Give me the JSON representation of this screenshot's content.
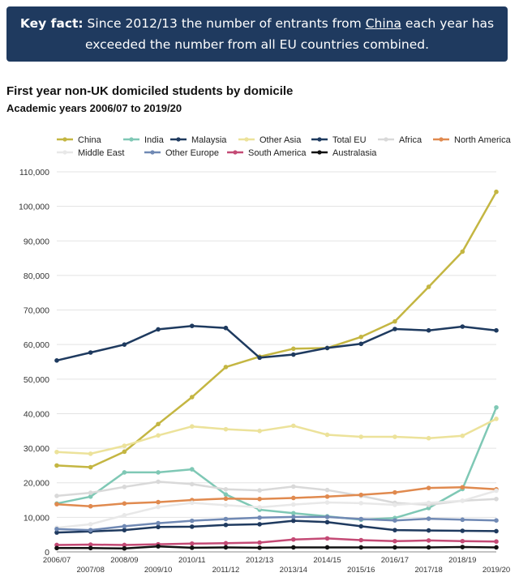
{
  "banner": {
    "label": "Key fact:",
    "text_1": "Since 2012/13 the number of entrants from",
    "link": "China",
    "text_2": "each year has exceeded the number from all EU countries combined."
  },
  "colors": {
    "banner_bg": "#1f3a5f"
  },
  "chart_data": {
    "type": "line",
    "title": "First year non-UK domiciled students by domicile",
    "subtitle": "Academic years 2006/07 to 2019/20",
    "legend_position": "top",
    "grid": true,
    "ylim": [
      0,
      110000
    ],
    "yticks": [
      "0",
      "10,000",
      "20,000",
      "30,000",
      "40,000",
      "50,000",
      "60,000",
      "70,000",
      "80,000",
      "90,000",
      "100,000",
      "110,000"
    ],
    "categories": [
      "2006/07",
      "2007/08",
      "2008/09",
      "2009/10",
      "2010/11",
      "2011/12",
      "2012/13",
      "2013/14",
      "2014/15",
      "2015/16",
      "2016/17",
      "2017/18",
      "2018/19",
      "2019/20"
    ],
    "series": [
      {
        "name": "China",
        "color": "#c4b642",
        "values": [
          25000,
          24500,
          29000,
          37000,
          44800,
          53500,
          56500,
          58800,
          59000,
          62200,
          66700,
          76700,
          86900,
          104200
        ]
      },
      {
        "name": "India",
        "color": "#7fc8b5",
        "values": [
          14000,
          16000,
          23000,
          23000,
          23900,
          16600,
          12200,
          11200,
          10300,
          9300,
          9800,
          12700,
          18200,
          41800
        ]
      },
      {
        "name": "Malaysia",
        "color": "#1f3a5f",
        "values": [
          5600,
          5900,
          6300,
          7200,
          7300,
          7800,
          8000,
          9000,
          8600,
          7400,
          6300,
          6200,
          6100,
          6000
        ]
      },
      {
        "name": "Other Asia",
        "color": "#ece29a",
        "values": [
          28900,
          28400,
          30700,
          33700,
          36300,
          35500,
          35000,
          36500,
          33900,
          33300,
          33300,
          32900,
          33600,
          38500
        ]
      },
      {
        "name": "Total EU",
        "color": "#1e3a5f",
        "values": [
          55400,
          57700,
          60000,
          64400,
          65400,
          64800,
          56200,
          57100,
          59000,
          60200,
          64500,
          64100,
          65200,
          64100
        ]
      },
      {
        "name": "Africa",
        "color": "#d9d9d9",
        "values": [
          16200,
          17100,
          18800,
          20300,
          19600,
          18100,
          17800,
          18900,
          17900,
          16200,
          14200,
          13600,
          14800,
          15300
        ]
      },
      {
        "name": "North America",
        "color": "#e08a4f",
        "values": [
          13800,
          13200,
          14000,
          14400,
          15000,
          15400,
          15300,
          15600,
          16000,
          16500,
          17200,
          18500,
          18700,
          18100
        ]
      },
      {
        "name": "Middle East",
        "color": "#e8e8e8",
        "values": [
          7000,
          8000,
          10600,
          13000,
          14200,
          13500,
          12900,
          13700,
          14300,
          14100,
          13600,
          14200,
          14800,
          17700
        ]
      },
      {
        "name": "Other Europe",
        "color": "#7089b4",
        "values": [
          6600,
          6300,
          7400,
          8300,
          9000,
          9500,
          9900,
          10100,
          10100,
          9500,
          9100,
          9600,
          9300,
          9100
        ]
      },
      {
        "name": "South America",
        "color": "#c44a75",
        "values": [
          2000,
          2100,
          2000,
          2200,
          2400,
          2500,
          2700,
          3600,
          3900,
          3400,
          3100,
          3300,
          3100,
          3000
        ]
      },
      {
        "name": "Australasia",
        "color": "#111111",
        "values": [
          1100,
          1100,
          1000,
          1600,
          1200,
          1300,
          1200,
          1300,
          1300,
          1300,
          1300,
          1300,
          1400,
          1300
        ]
      }
    ]
  }
}
